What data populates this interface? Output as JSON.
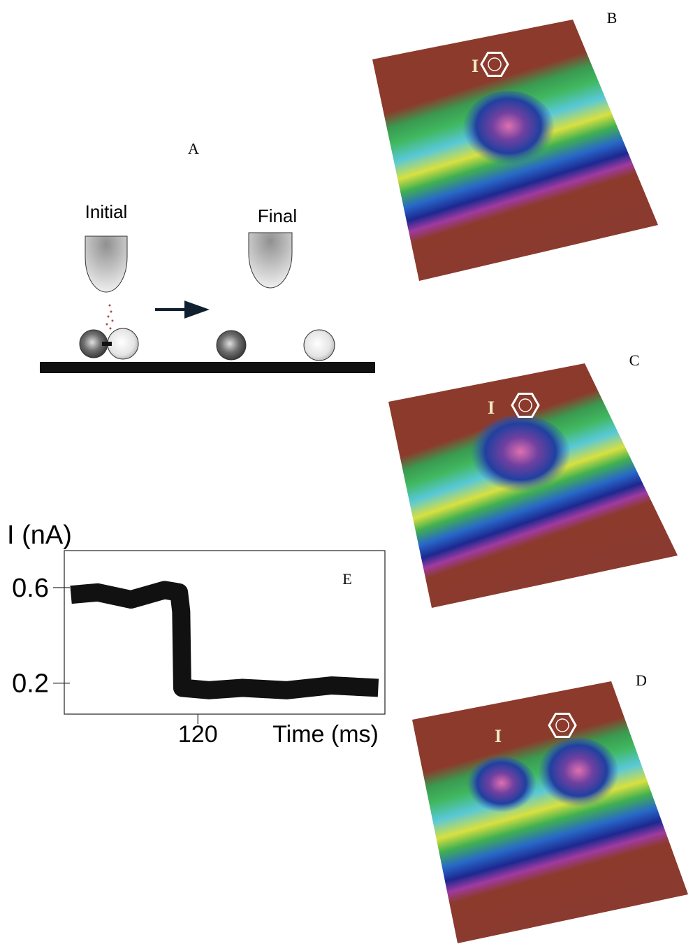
{
  "panels": {
    "A": {
      "label": "A",
      "initial": "Initial",
      "final": "Final"
    },
    "B": {
      "label": "B",
      "atom": "I"
    },
    "C": {
      "label": "C",
      "atom": "I"
    },
    "D": {
      "label": "D",
      "atom": "I"
    }
  },
  "chart_data": {
    "type": "line",
    "label": "E",
    "ylabel": "I (nA)",
    "xlabel": "Time (ms)",
    "x": [
      6,
      30,
      60,
      90,
      103,
      105,
      106,
      130,
      160,
      200,
      240,
      282
    ],
    "series": [
      {
        "color": "#111111",
        "values": [
          0.57,
          0.58,
          0.55,
          0.59,
          0.58,
          0.5,
          0.18,
          0.17,
          0.18,
          0.17,
          0.19,
          0.18
        ]
      }
    ],
    "xlim": [
      0,
      288
    ],
    "ylim": [
      0.07,
      0.755
    ],
    "xticks": [
      120
    ],
    "yticks": [
      0.6,
      0.2
    ]
  }
}
